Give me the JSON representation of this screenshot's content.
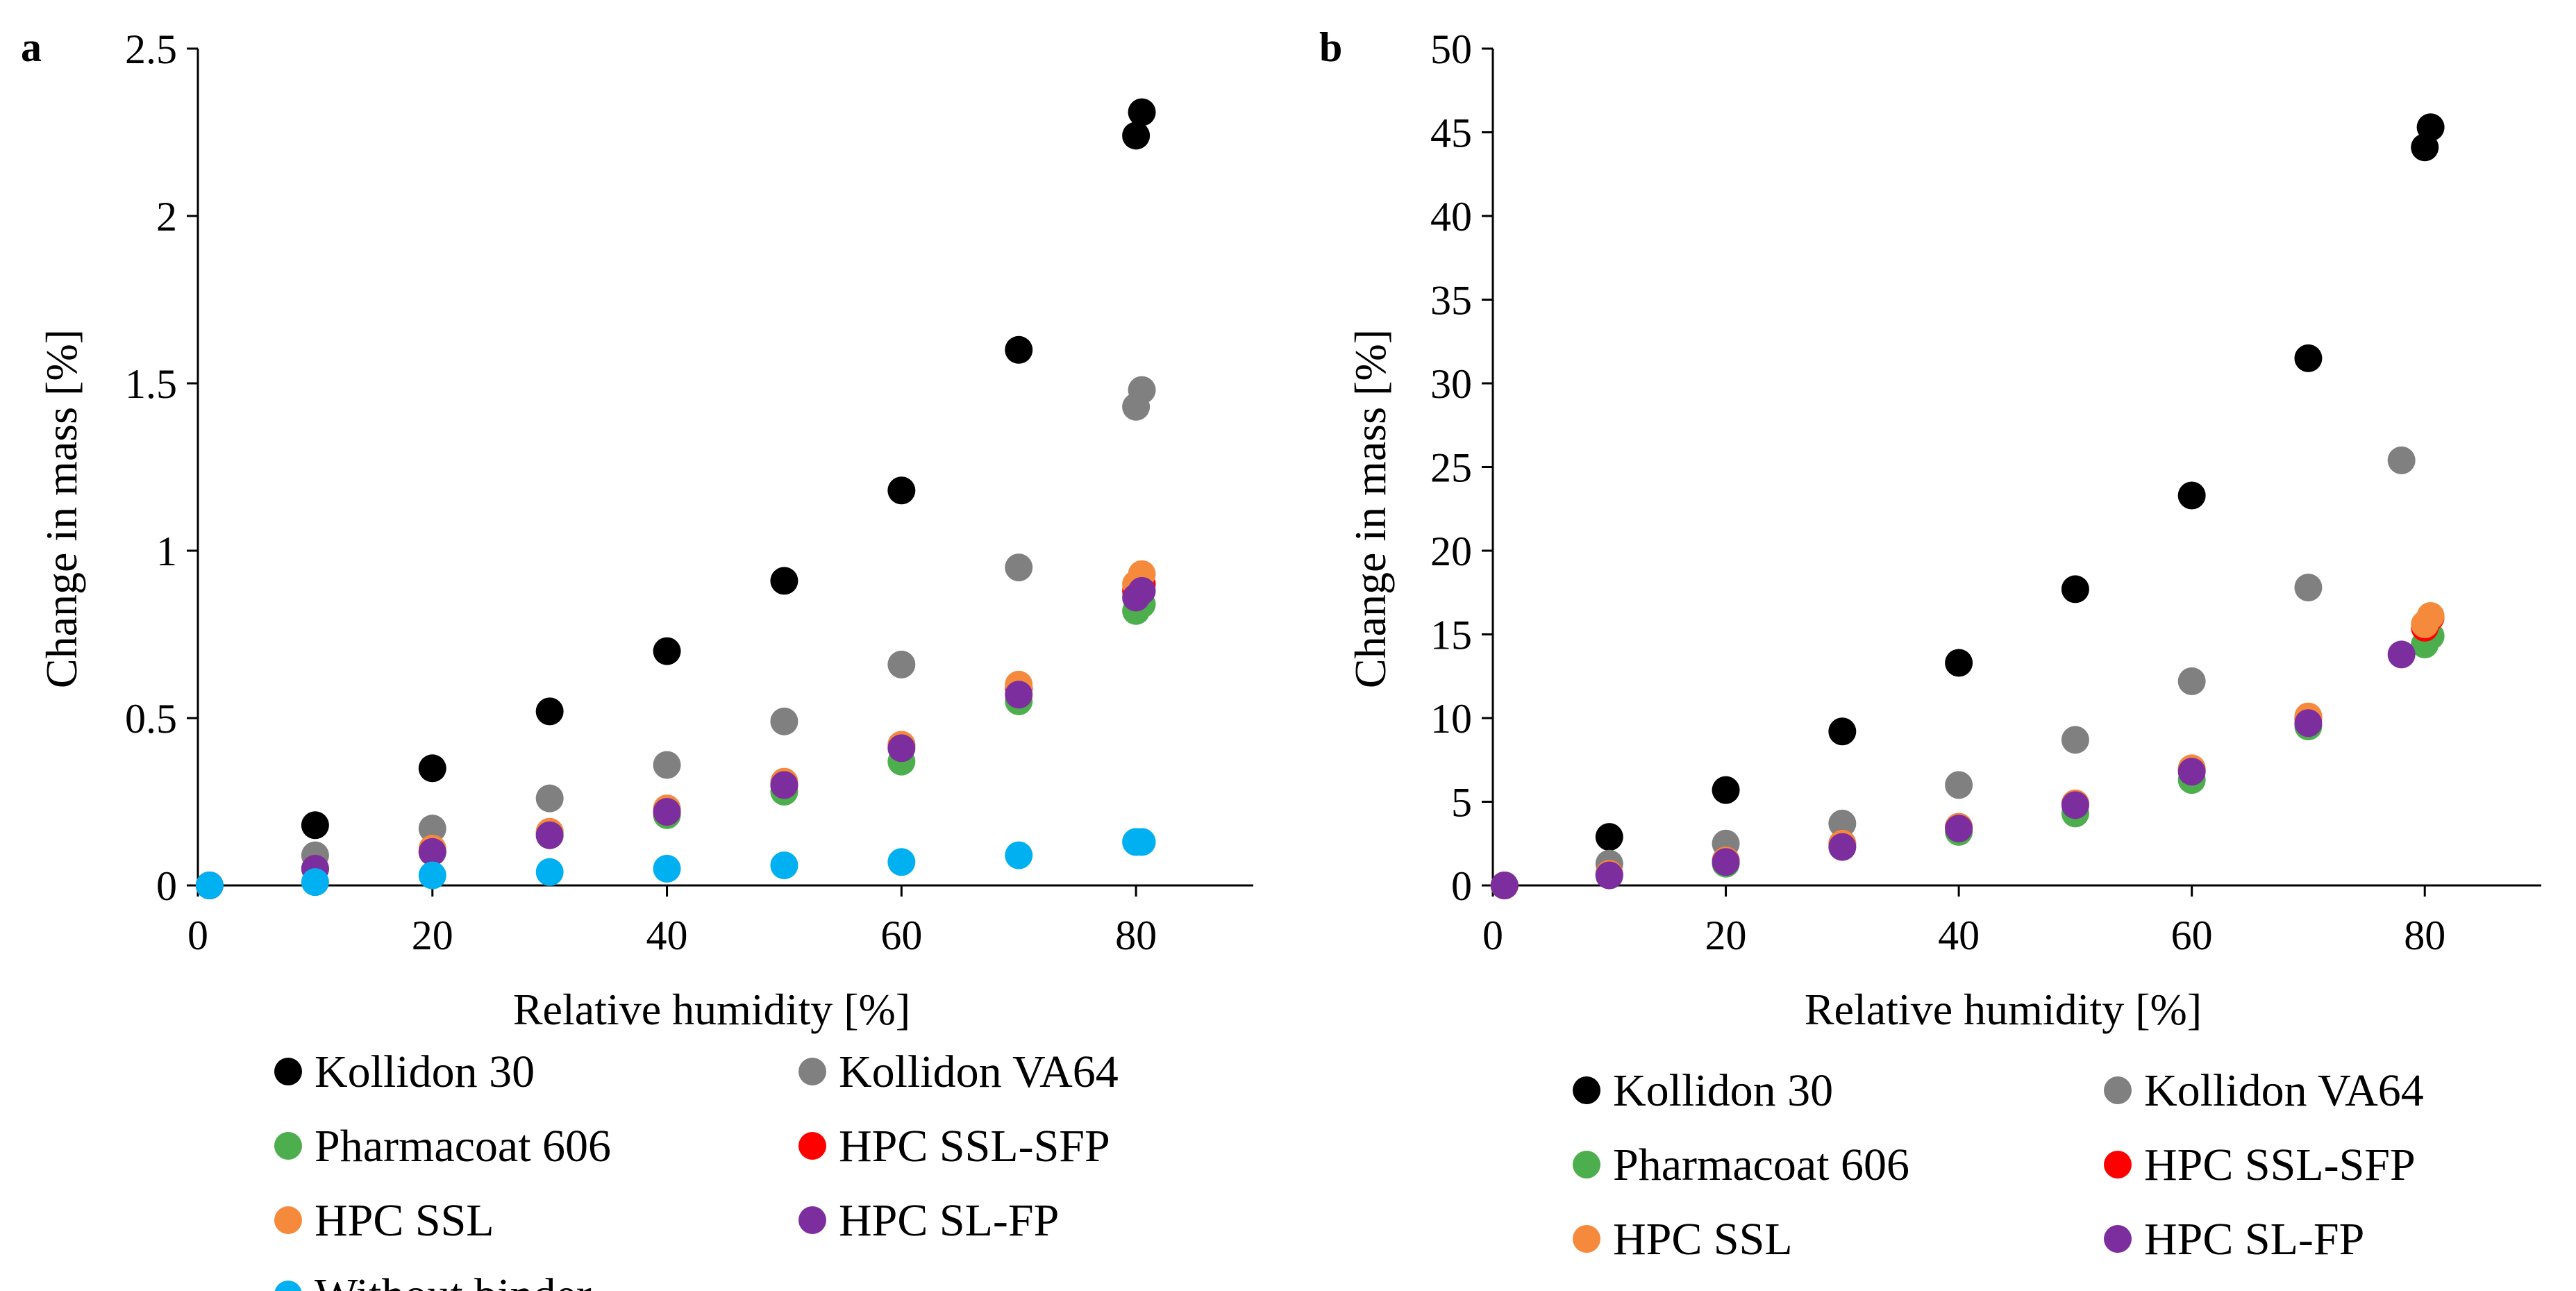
{
  "chart_data": [
    {
      "type": "scatter",
      "panel_label": "a",
      "xlabel": "Relative humidity [%]",
      "ylabel": "Change in mass [%]",
      "xlim": [
        0,
        90
      ],
      "ylim": [
        0,
        2.5
      ],
      "x_ticks": [
        0,
        20,
        40,
        60,
        80
      ],
      "x_tick_labels": [
        "0",
        "20",
        "40",
        "60",
        "80"
      ],
      "y_ticks": [
        0,
        0.5,
        1,
        1.5,
        2,
        2.5
      ],
      "y_tick_labels": [
        "0",
        "0.5",
        "1",
        "1.5",
        "2",
        "2.5"
      ],
      "grid": false,
      "legend_position": "bottom",
      "series": [
        {
          "name": "Kollidon 30",
          "color": "#000000",
          "x": [
            1,
            10,
            20,
            30,
            40,
            50,
            60,
            70,
            80,
            80.5
          ],
          "y": [
            0,
            0.18,
            0.35,
            0.52,
            0.7,
            0.91,
            1.18,
            1.6,
            2.24,
            2.31
          ]
        },
        {
          "name": "Kollidon VA64",
          "color": "#808080",
          "x": [
            1,
            10,
            20,
            30,
            40,
            50,
            60,
            70,
            80,
            80.5
          ],
          "y": [
            0,
            0.09,
            0.17,
            0.26,
            0.36,
            0.49,
            0.66,
            0.95,
            1.43,
            1.48
          ]
        },
        {
          "name": "Pharmacoat 606",
          "color": "#4cae4c",
          "x": [
            1,
            10,
            20,
            30,
            40,
            50,
            60,
            70,
            80,
            80.5
          ],
          "y": [
            0,
            0.05,
            0.1,
            0.15,
            0.21,
            0.28,
            0.37,
            0.55,
            0.82,
            0.84
          ]
        },
        {
          "name": "HPC SSL-SFP",
          "color": "#ff0000",
          "x": [
            1,
            10,
            20,
            30,
            40,
            50,
            60,
            70,
            80,
            80.5
          ],
          "y": [
            0,
            0.05,
            0.1,
            0.16,
            0.22,
            0.3,
            0.42,
            0.59,
            0.88,
            0.9
          ]
        },
        {
          "name": "HPC SSL",
          "color": "#f58a3c",
          "x": [
            1,
            10,
            20,
            30,
            40,
            50,
            60,
            70,
            80,
            80.5
          ],
          "y": [
            0,
            0.05,
            0.11,
            0.16,
            0.23,
            0.31,
            0.42,
            0.6,
            0.9,
            0.93
          ]
        },
        {
          "name": "HPC SL-FP",
          "color": "#7d2e9e",
          "x": [
            1,
            10,
            20,
            30,
            40,
            50,
            60,
            70,
            80,
            80.5
          ],
          "y": [
            0,
            0.05,
            0.1,
            0.15,
            0.22,
            0.3,
            0.41,
            0.57,
            0.86,
            0.88
          ]
        },
        {
          "name": "Without binder",
          "color": "#00b0f0",
          "x": [
            1,
            10,
            20,
            30,
            40,
            50,
            60,
            70,
            80,
            80.5
          ],
          "y": [
            0,
            0.01,
            0.03,
            0.04,
            0.05,
            0.06,
            0.07,
            0.09,
            0.13,
            0.13
          ]
        }
      ]
    },
    {
      "type": "scatter",
      "panel_label": "b",
      "xlabel": "Relative humidity [%]",
      "ylabel": "Change in mass [%]",
      "xlim": [
        0,
        90
      ],
      "ylim": [
        0,
        50
      ],
      "x_ticks": [
        0,
        20,
        40,
        60,
        80
      ],
      "x_tick_labels": [
        "0",
        "20",
        "40",
        "60",
        "80"
      ],
      "y_ticks": [
        0,
        5,
        10,
        15,
        20,
        25,
        30,
        35,
        40,
        45,
        50
      ],
      "y_tick_labels": [
        "0",
        "5",
        "10",
        "15",
        "20",
        "25",
        "30",
        "35",
        "40",
        "45",
        "50"
      ],
      "grid": false,
      "legend_position": "bottom",
      "series": [
        {
          "name": "Kollidon 30",
          "color": "#000000",
          "x": [
            1,
            10,
            20,
            30,
            40,
            50,
            60,
            70,
            80,
            80.5
          ],
          "y": [
            0,
            2.9,
            5.7,
            9.2,
            13.3,
            17.7,
            23.3,
            31.5,
            44.1,
            45.3
          ]
        },
        {
          "name": "Kollidon VA64",
          "color": "#808080",
          "x": [
            1,
            10,
            20,
            30,
            40,
            50,
            60,
            70,
            78
          ],
          "y": [
            0,
            1.3,
            2.5,
            3.7,
            6.0,
            8.7,
            12.2,
            17.8,
            25.4
          ]
        },
        {
          "name": "Pharmacoat 606",
          "color": "#4cae4c",
          "x": [
            1,
            10,
            20,
            30,
            40,
            50,
            60,
            70,
            80,
            80.5
          ],
          "y": [
            0,
            0.6,
            1.3,
            2.3,
            3.2,
            4.3,
            6.3,
            9.5,
            14.4,
            14.9
          ]
        },
        {
          "name": "HPC SSL-SFP",
          "color": "#ff0000",
          "x": [
            1,
            10,
            20,
            30,
            40,
            50,
            60,
            70,
            80,
            80.5
          ],
          "y": [
            0,
            0.7,
            1.5,
            2.5,
            3.5,
            4.9,
            6.9,
            10.0,
            15.4,
            16.0
          ]
        },
        {
          "name": "HPC SSL",
          "color": "#f58a3c",
          "x": [
            1,
            10,
            20,
            30,
            40,
            50,
            60,
            70,
            80,
            80.5
          ],
          "y": [
            0,
            0.7,
            1.5,
            2.5,
            3.5,
            4.9,
            7.0,
            10.1,
            15.6,
            16.1
          ]
        },
        {
          "name": "HPC SL-FP",
          "color": "#7d2e9e",
          "x": [
            1,
            10,
            20,
            30,
            40,
            50,
            60,
            70,
            78
          ],
          "y": [
            0,
            0.6,
            1.4,
            2.3,
            3.4,
            4.8,
            6.8,
            9.7,
            13.8
          ]
        }
      ]
    }
  ]
}
